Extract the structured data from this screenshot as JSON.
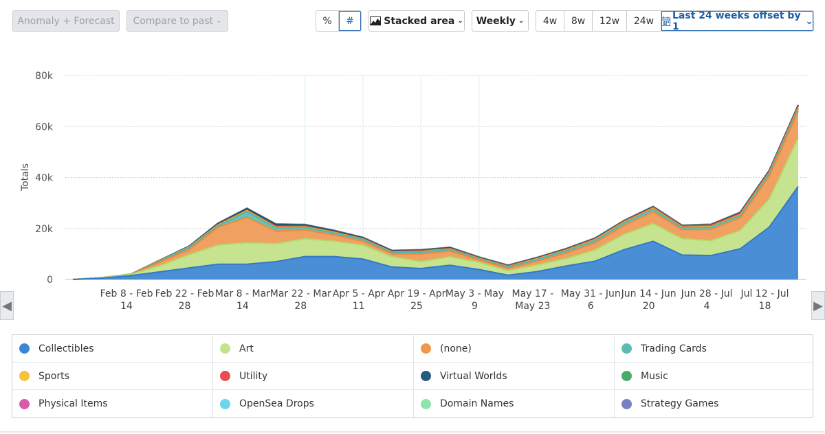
{
  "toolbar": {
    "anomaly_label": "Anomaly + Forecast",
    "compare_label": "Compare to past",
    "percent_label": "%",
    "count_label": "#",
    "chart_type_label": "Stacked area",
    "interval_label": "Weekly",
    "range_4w": "4w",
    "range_8w": "8w",
    "range_12w": "12w",
    "range_24w": "24w",
    "date_range_label": "Last 24 weeks offset by 1"
  },
  "chart_data": {
    "type": "area",
    "stacked": true,
    "ylabel": "Totals",
    "ylim": [
      0,
      80000
    ],
    "yticks": [
      0,
      20000,
      40000,
      60000,
      80000
    ],
    "ytick_labels": [
      "0",
      "20k",
      "40k",
      "60k",
      "80k"
    ],
    "grid": true,
    "x_tick_labels": [
      [
        "Feb 8 - Feb",
        "14"
      ],
      [
        "Feb 22 - Feb",
        "28"
      ],
      [
        "Mar 8 - Mar",
        "14"
      ],
      [
        "Mar 22 - Mar",
        "28"
      ],
      [
        "Apr 5 - Apr",
        "11"
      ],
      [
        "Apr 19 - Apr",
        "25"
      ],
      [
        "May 3 - May",
        "9"
      ],
      [
        "May 17 -",
        "May 23"
      ],
      [
        "May 31 - Jun",
        "6"
      ],
      [
        "Jun 14 - Jun",
        "20"
      ],
      [
        "Jun 28 - Jul",
        "4"
      ],
      [
        "Jul 12 - Jul",
        "18"
      ]
    ],
    "series": [
      {
        "name": "Collectibles",
        "color": "#4a8fd6",
        "line": "#3278c6",
        "values": [
          0,
          500,
          1500,
          3000,
          4500,
          6000,
          6000,
          7000,
          9000,
          9000,
          8000,
          4900,
          4300,
          5600,
          3900,
          1700,
          3100,
          5300,
          7200,
          11700,
          15000,
          9600,
          9400,
          12000,
          20500,
          36500
        ]
      },
      {
        "name": "Art",
        "color": "#c6e48f",
        "line": "#b3da6c",
        "values": [
          0,
          250,
          500,
          2400,
          5200,
          7500,
          8400,
          7000,
          7000,
          6000,
          5500,
          4000,
          2700,
          3300,
          2800,
          1700,
          2600,
          2900,
          4400,
          6000,
          6900,
          6400,
          5800,
          7200,
          11000,
          19000
        ]
      },
      {
        "name": "(none)",
        "color": "#f0a060",
        "line": "#ea8a3c",
        "values": [
          0,
          0,
          0,
          1500,
          2000,
          7000,
          10000,
          5000,
          3500,
          2500,
          1500,
          1200,
          3000,
          2300,
          1000,
          1000,
          1500,
          2200,
          2800,
          3500,
          4700,
          3500,
          4500,
          5000,
          9000,
          10500
        ]
      },
      {
        "name": "Trading Cards",
        "color": "#67c2ba",
        "line": "#4fb5ad",
        "values": [
          0,
          0,
          100,
          400,
          800,
          500,
          2300,
          1200,
          900,
          800,
          700,
          500,
          800,
          600,
          400,
          500,
          700,
          800,
          900,
          1000,
          1000,
          700,
          800,
          900,
          1000,
          1000
        ]
      },
      {
        "name": "Sports",
        "color": "#f5c242",
        "line": "#f2b621",
        "values": [
          0,
          0,
          0,
          100,
          200,
          300,
          300,
          300,
          200,
          200,
          150,
          150,
          200,
          150,
          150,
          150,
          200,
          250,
          300,
          300,
          300,
          300,
          300,
          300,
          300,
          300
        ]
      },
      {
        "name": "Utility",
        "color": "#e85a5a",
        "line": "#e24444",
        "values": [
          0,
          0,
          0,
          100,
          100,
          200,
          200,
          300,
          300,
          200,
          200,
          200,
          200,
          200,
          200,
          200,
          200,
          300,
          300,
          300,
          400,
          400,
          500,
          500,
          500,
          700
        ]
      },
      {
        "name": "Virtual Worlds",
        "color": "#2e5e80",
        "line": "#24506f",
        "values": [
          0,
          0,
          0,
          100,
          200,
          400,
          600,
          800,
          500,
          400,
          300,
          300,
          300,
          300,
          200,
          200,
          200,
          200,
          200,
          200,
          200,
          200,
          200,
          300,
          300,
          300
        ]
      },
      {
        "name": "Music",
        "color": "#4fae6d",
        "line": "#3f9d5c",
        "values": [
          0,
          0,
          0,
          0,
          50,
          100,
          100,
          100,
          100,
          100,
          100,
          100,
          100,
          100,
          100,
          100,
          100,
          100,
          100,
          100,
          100,
          100,
          100,
          100,
          100,
          100
        ]
      },
      {
        "name": "Physical Items",
        "color": "#d55aa5",
        "line": "#c94596",
        "values": [
          0,
          0,
          0,
          0,
          0,
          50,
          50,
          50,
          50,
          50,
          50,
          50,
          50,
          50,
          50,
          50,
          50,
          50,
          50,
          50,
          50,
          50,
          50,
          50,
          50,
          50
        ]
      },
      {
        "name": "OpenSea Drops",
        "color": "#6dd3e8",
        "line": "#4fc5de",
        "values": [
          0,
          0,
          0,
          0,
          0,
          0,
          0,
          0,
          0,
          0,
          0,
          0,
          0,
          0,
          0,
          0,
          0,
          0,
          0,
          0,
          0,
          0,
          0,
          0,
          0,
          0
        ]
      },
      {
        "name": "Domain Names",
        "color": "#86e0a8",
        "line": "#6bd693",
        "values": [
          0,
          0,
          0,
          0,
          0,
          50,
          50,
          50,
          50,
          50,
          50,
          50,
          50,
          50,
          50,
          50,
          50,
          50,
          50,
          50,
          50,
          50,
          50,
          50,
          50,
          50
        ]
      },
      {
        "name": "Strategy Games",
        "color": "#6e7dbd",
        "line": "#5a6ab0",
        "values": [
          0,
          0,
          0,
          0,
          0,
          0,
          0,
          0,
          0,
          0,
          0,
          0,
          0,
          0,
          0,
          0,
          0,
          0,
          0,
          0,
          0,
          0,
          0,
          0,
          0,
          0
        ]
      }
    ]
  },
  "legend": [
    {
      "label": "Collectibles",
      "color": "#3a86d4"
    },
    {
      "label": "Art",
      "color": "#c3e38a"
    },
    {
      "label": "(none)",
      "color": "#f0994c"
    },
    {
      "label": "Trading Cards",
      "color": "#5cbcb3"
    },
    {
      "label": "Sports",
      "color": "#f6c13c"
    },
    {
      "label": "Utility",
      "color": "#ea4d51"
    },
    {
      "label": "Virtual Worlds",
      "color": "#275a7c"
    },
    {
      "label": "Music",
      "color": "#4aaa6b"
    },
    {
      "label": "Physical Items",
      "color": "#d95aa8"
    },
    {
      "label": "OpenSea Drops",
      "color": "#6fd4ea"
    },
    {
      "label": "Domain Names",
      "color": "#8fe4ad"
    },
    {
      "label": "Strategy Games",
      "color": "#7680c2"
    }
  ],
  "nav": {
    "prev_icon": "chevron-left-icon",
    "next_icon": "chevron-right-icon",
    "prev_glyph": "◀",
    "next_glyph": "▶"
  }
}
